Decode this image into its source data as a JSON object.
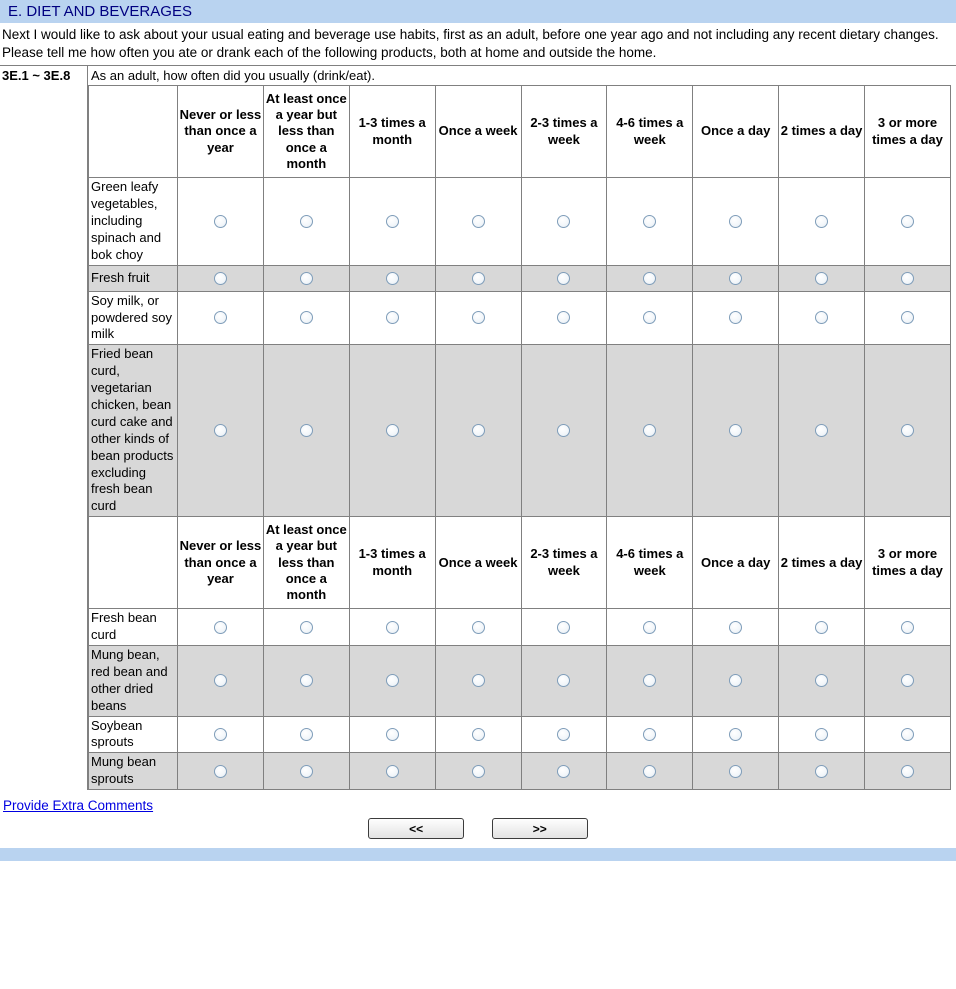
{
  "title_bar": {
    "title": "E. DIET AND BEVERAGES"
  },
  "intro_text": "Next I would like to ask about your usual eating and beverage use habits, first as an adult, before one year ago and not including any recent dietary changes. Please tell me how often you ate or drank each of the following products, both at home and outside the home.",
  "question": {
    "code": "3E.1 ~ 3E.8",
    "text": "As an adult, how often did you usually (drink/eat)."
  },
  "frequency_columns": [
    "Never or less than once a year",
    "At least once a year but less than once a month",
    "1-3 times a month",
    "Once a week",
    "2-3 times a week",
    "4-6 times a week",
    "Once a day",
    "2 times a day",
    "3 or more times a day"
  ],
  "sections": [
    {
      "rows": [
        {
          "label": "Green leafy vegetables, including spinach and bok choy",
          "shaded": false,
          "selected": null
        },
        {
          "label": "Fresh fruit",
          "shaded": true,
          "selected": null
        },
        {
          "label": "Soy milk, or powdered soy milk",
          "shaded": false,
          "selected": null
        },
        {
          "label": "Fried bean curd, vegetarian chicken, bean curd cake and other kinds of bean products excluding fresh bean curd",
          "shaded": true,
          "selected": null
        }
      ]
    },
    {
      "rows": [
        {
          "label": "Fresh bean curd",
          "shaded": false,
          "selected": null
        },
        {
          "label": "Mung bean, red bean and other dried beans",
          "shaded": true,
          "selected": null
        },
        {
          "label": "Soybean sprouts",
          "shaded": false,
          "selected": null
        },
        {
          "label": "Mung bean sprouts",
          "shaded": true,
          "selected": null
        }
      ]
    }
  ],
  "footer": {
    "comments_link": "Provide Extra Comments",
    "prev_label": "<<",
    "next_label": ">>"
  },
  "colors": {
    "titlebar_bg": "#b9d3f0",
    "title_text": "#000080",
    "shaded_row": "#d8d8d8",
    "border_gray": "#808080",
    "link_blue": "#0000e0",
    "radio_border": "#7f9db9"
  }
}
